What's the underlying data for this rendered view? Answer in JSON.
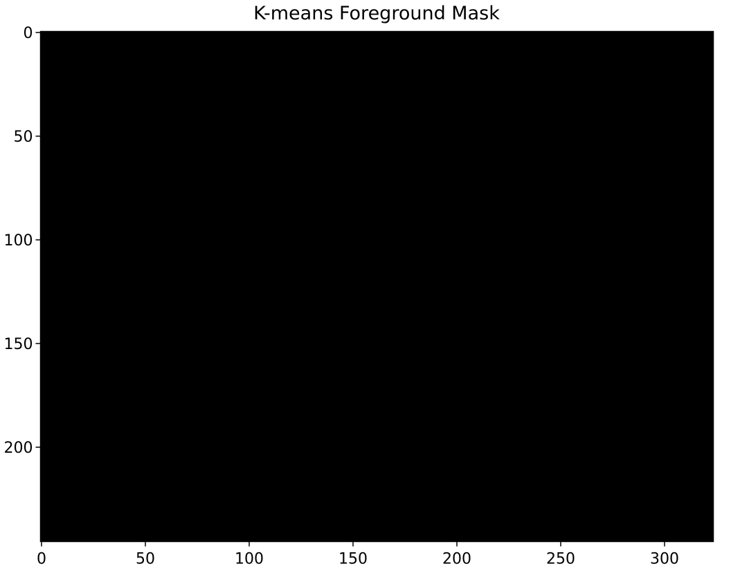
{
  "chart_data": {
    "type": "image",
    "title": "K-means Foreground Mask",
    "color": "#000000",
    "xlim": [
      -0.5,
      323.5
    ],
    "xticks": [
      0,
      50,
      100,
      150,
      200,
      250,
      300
    ],
    "ylim": [
      245.5,
      -0.5
    ],
    "yticks": [
      0,
      50,
      100,
      150,
      200
    ]
  }
}
